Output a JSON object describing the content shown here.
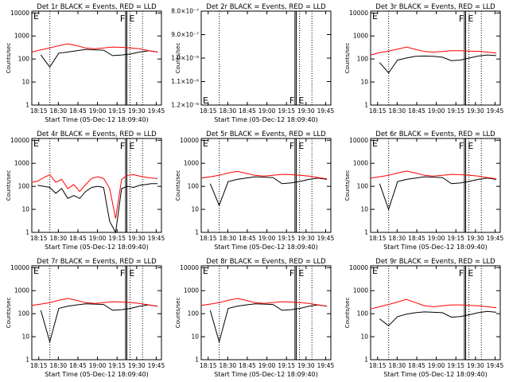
{
  "figure": {
    "background": "#ffffff",
    "events_color": "#000000",
    "lld_color": "#ff0000"
  },
  "chart_data": [
    {
      "type": "line",
      "title": "Det 1r BLACK = Events, RED = LLD",
      "xlabel": "Start Time (05-Dec-12 18:09:40)",
      "ylabel": "Counts/sec",
      "yscale": "log",
      "ylim": [
        1,
        12000
      ],
      "ytick_labels": [
        "1",
        "10",
        "100",
        "1000",
        "10000"
      ],
      "xtick_labels": [
        "18:15",
        "18:30",
        "18:45",
        "19:00",
        "19:15",
        "19:30",
        "19:45"
      ],
      "x_minutes": [
        "18:09:40",
        "18:20",
        "18:22",
        "18:24",
        "18:30",
        "18:40",
        "18:50",
        "19:00",
        "19:07",
        "19:09",
        "19:17",
        "19:20",
        "19:25",
        "19:33",
        "19:44"
      ],
      "flags": [
        "F",
        "E"
      ],
      "series": [
        {
          "name": "Events",
          "values": [
            null,
            150,
            45,
            180,
            200,
            230,
            260,
            250,
            240,
            140,
            150,
            165,
            200,
            230,
            200
          ]
        },
        {
          "name": "LLD",
          "values": [
            200,
            250,
            300,
            380,
            460,
            380,
            300,
            280,
            300,
            330,
            320,
            300,
            280,
            230,
            200
          ]
        }
      ]
    },
    {
      "type": "line",
      "title": "Det 2r BLACK = Events, RED = LLD",
      "xlabel": "Start Time (05-Dec-12 18:09:40)",
      "ylabel": "Counts/sec",
      "yscale": "log",
      "ylim": [
        8e-07,
        1.2e-06
      ],
      "ytick_labels": [
        "1.2×10⁻⁶",
        "1.1×10⁻⁶",
        "1.0×10⁻⁶",
        "9.0×10⁻⁷",
        "8.0×10⁻⁷"
      ],
      "xtick_labels": [
        "18:15",
        "18:30",
        "18:45",
        "19:00",
        "19:15",
        "19:30",
        "19:45"
      ],
      "flags": [
        "F",
        "E"
      ],
      "series": []
    },
    {
      "type": "line",
      "title": "Det 3r BLACK = Events, RED = LLD",
      "xlabel": "",
      "ylabel": "Counts/sec",
      "yscale": "log",
      "ylim": [
        1,
        12000
      ],
      "ytick_labels": [
        "1",
        "10",
        "100",
        "1000",
        "10000"
      ],
      "xtick_labels": [
        "18:15",
        "18:30",
        "18:45",
        "19:00",
        "19:15",
        "19:30",
        "19:45"
      ],
      "x_minutes": [
        "18:09:40",
        "18:20",
        "18:22",
        "18:24",
        "18:30",
        "18:40",
        "18:50",
        "19:00",
        "19:07",
        "19:09",
        "19:17",
        "19:20",
        "19:25",
        "19:33",
        "19:44"
      ],
      "flags": [
        "F",
        "E"
      ],
      "series": [
        {
          "name": "Events",
          "values": [
            null,
            70,
            25,
            90,
            110,
            130,
            135,
            130,
            120,
            85,
            90,
            110,
            135,
            150,
            140
          ]
        },
        {
          "name": "LLD",
          "values": [
            150,
            190,
            220,
            270,
            330,
            260,
            210,
            200,
            210,
            230,
            230,
            220,
            215,
            200,
            180
          ]
        }
      ]
    },
    {
      "type": "line",
      "title": "Det 4r BLACK = Events, RED = LLD",
      "xlabel": "Start Time (05-Dec-12 18:09:40)",
      "ylabel": "Counts/sec",
      "yscale": "log",
      "ylim": [
        1,
        12000
      ],
      "ytick_labels": [
        "1",
        "10",
        "100",
        "1000",
        "10000"
      ],
      "xtick_labels": [
        "18:15",
        "18:30",
        "18:45",
        "19:00",
        "19:15",
        "19:30",
        "19:45"
      ],
      "flags": [
        "F",
        "E"
      ],
      "series": [
        {
          "name": "Events",
          "values": [
            null,
            110,
            100,
            90,
            50,
            80,
            30,
            40,
            30,
            60,
            90,
            100,
            90,
            3,
            1,
            80,
            100,
            90,
            110,
            120,
            130,
            130
          ]
        },
        {
          "name": "LLD",
          "values": [
            150,
            170,
            240,
            320,
            150,
            200,
            80,
            120,
            60,
            120,
            220,
            260,
            220,
            80,
            4,
            200,
            300,
            320,
            280,
            250,
            230,
            220
          ]
        }
      ]
    },
    {
      "type": "line",
      "title": "Det 5r BLACK = Events, RED = LLD",
      "xlabel": "Start Time (05-Dec-12 18:09:40)",
      "ylabel": "Counts/sec",
      "yscale": "log",
      "ylim": [
        1,
        12000
      ],
      "ytick_labels": [
        "1",
        "10",
        "100",
        "1000",
        "10000"
      ],
      "xtick_labels": [
        "18:15",
        "18:30",
        "18:45",
        "19:00",
        "19:15",
        "19:30",
        "19:45"
      ],
      "flags": [
        "F",
        "E"
      ],
      "series": [
        {
          "name": "Events",
          "values": [
            null,
            130,
            15,
            160,
            200,
            230,
            260,
            250,
            240,
            130,
            140,
            165,
            200,
            230,
            200
          ]
        },
        {
          "name": "LLD",
          "values": [
            230,
            260,
            300,
            380,
            450,
            370,
            300,
            280,
            300,
            330,
            320,
            300,
            280,
            240,
            210
          ]
        }
      ]
    },
    {
      "type": "line",
      "title": "Det 6r BLACK = Events, RED = LLD",
      "xlabel": "Start Time (05-Dec-12 18:09:40)",
      "ylabel": "Counts/sec",
      "yscale": "log",
      "ylim": [
        1,
        12000
      ],
      "ytick_labels": [
        "1",
        "10",
        "100",
        "1000",
        "10000"
      ],
      "xtick_labels": [
        "18:15",
        "18:30",
        "18:45",
        "19:00",
        "19:15",
        "19:30",
        "19:45"
      ],
      "flags": [
        "F",
        "E"
      ],
      "series": [
        {
          "name": "Events",
          "values": [
            null,
            130,
            10,
            160,
            200,
            230,
            260,
            250,
            240,
            130,
            140,
            165,
            200,
            230,
            200
          ]
        },
        {
          "name": "LLD",
          "values": [
            230,
            260,
            300,
            380,
            460,
            380,
            300,
            280,
            300,
            330,
            320,
            300,
            280,
            240,
            210
          ]
        }
      ]
    },
    {
      "type": "line",
      "title": "Det 7r BLACK = Events, RED = LLD",
      "xlabel": "Start Time (05-Dec-12 18:09:40)",
      "ylabel": "Counts/sec",
      "yscale": "log",
      "ylim": [
        1,
        12000
      ],
      "ytick_labels": [
        "1",
        "10",
        "100",
        "1000",
        "10000"
      ],
      "xtick_labels": [
        "18:15",
        "18:30",
        "18:45",
        "19:00",
        "19:15",
        "19:30",
        "19:45"
      ],
      "flags": [
        "F",
        "E"
      ],
      "series": [
        {
          "name": "Events",
          "values": [
            null,
            140,
            6,
            170,
            210,
            240,
            270,
            260,
            250,
            140,
            150,
            170,
            210,
            240,
            210
          ]
        },
        {
          "name": "LLD",
          "values": [
            230,
            260,
            300,
            380,
            460,
            380,
            300,
            280,
            300,
            330,
            320,
            300,
            280,
            240,
            210
          ]
        }
      ]
    },
    {
      "type": "line",
      "title": "Det 8r BLACK = Events, RED = LLD",
      "xlabel": "Start Time (05-Dec-12 18:09:40)",
      "ylabel": "Counts/sec",
      "yscale": "log",
      "ylim": [
        1,
        12000
      ],
      "ytick_labels": [
        "1",
        "10",
        "100",
        "1000",
        "10000"
      ],
      "xtick_labels": [
        "18:15",
        "18:30",
        "18:45",
        "19:00",
        "19:15",
        "19:30",
        "19:45"
      ],
      "flags": [
        "F",
        "E"
      ],
      "series": [
        {
          "name": "Events",
          "values": [
            null,
            140,
            6,
            170,
            210,
            240,
            270,
            260,
            250,
            140,
            150,
            170,
            210,
            240,
            210
          ]
        },
        {
          "name": "LLD",
          "values": [
            230,
            260,
            300,
            380,
            460,
            380,
            300,
            280,
            300,
            330,
            320,
            300,
            280,
            240,
            210
          ]
        }
      ]
    },
    {
      "type": "line",
      "title": "Det 9r BLACK = Events, RED = LLD",
      "xlabel": "Start Time (05-Dec-12 18:09:40)",
      "ylabel": "Counts/sec",
      "yscale": "log",
      "ylim": [
        1,
        12000
      ],
      "ytick_labels": [
        "1",
        "10",
        "100",
        "1000",
        "10000"
      ],
      "xtick_labels": [
        "18:15",
        "18:30",
        "18:45",
        "19:00",
        "19:15",
        "19:30",
        "19:45"
      ],
      "flags": [
        "F",
        "E"
      ],
      "series": [
        {
          "name": "Events",
          "values": [
            null,
            60,
            30,
            75,
            95,
            110,
            120,
            115,
            110,
            70,
            75,
            90,
            110,
            125,
            115
          ]
        },
        {
          "name": "LLD",
          "values": [
            160,
            200,
            250,
            320,
            420,
            300,
            220,
            200,
            220,
            240,
            240,
            230,
            220,
            200,
            180
          ]
        }
      ]
    }
  ]
}
